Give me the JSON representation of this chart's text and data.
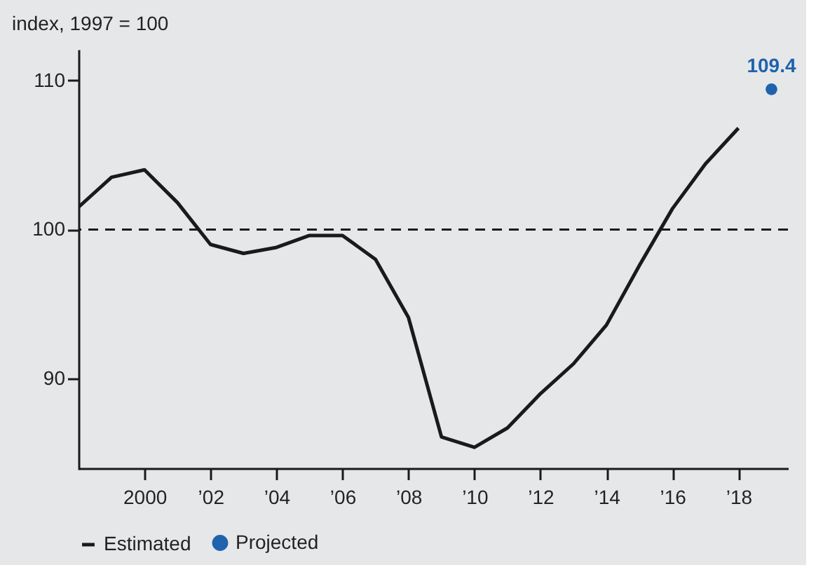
{
  "chart_data": {
    "type": "line",
    "ylabel": "index, 1997 = 100",
    "xlim": [
      1998,
      2019.5
    ],
    "ylim": [
      84,
      112
    ],
    "xticks": [
      2000,
      {
        "value": 2002,
        "label": "’02"
      },
      {
        "value": 2004,
        "label": "’04"
      },
      {
        "value": 2006,
        "label": "’06"
      },
      {
        "value": 2008,
        "label": "’08"
      },
      {
        "value": 2010,
        "label": "’10"
      },
      {
        "value": 2012,
        "label": "’12"
      },
      {
        "value": 2014,
        "label": "’14"
      },
      {
        "value": 2016,
        "label": "’16"
      },
      {
        "value": 2018,
        "label": "’18"
      }
    ],
    "yticks": [
      90,
      100,
      110
    ],
    "series": [
      {
        "name": "Estimated",
        "color": "#1a1a1a",
        "x": [
          1998,
          1999,
          2000,
          2001,
          2002,
          2003,
          2004,
          2005,
          2006,
          2007,
          2008,
          2009,
          2010,
          2011,
          2012,
          2013,
          2014,
          2015,
          2016,
          2017,
          2018
        ],
        "values": [
          101.5,
          103.5,
          104.0,
          101.8,
          99.0,
          98.4,
          98.8,
          99.6,
          99.6,
          98.0,
          94.1,
          86.1,
          85.4,
          86.7,
          89.0,
          91.0,
          93.6,
          97.6,
          101.4,
          104.4,
          106.8
        ]
      },
      {
        "name": "Projected",
        "type": "scatter",
        "marker": "circle",
        "color": "#1f62ad",
        "x": [
          2019
        ],
        "values": [
          109.4
        ],
        "value_labels": [
          "109.4"
        ]
      }
    ],
    "ref_lines": [
      {
        "axis": "y",
        "value": 100,
        "line_style": "dashed",
        "color": "#1a1a1a"
      }
    ],
    "grid": false,
    "legend": "bottom",
    "line_style": "solid"
  }
}
